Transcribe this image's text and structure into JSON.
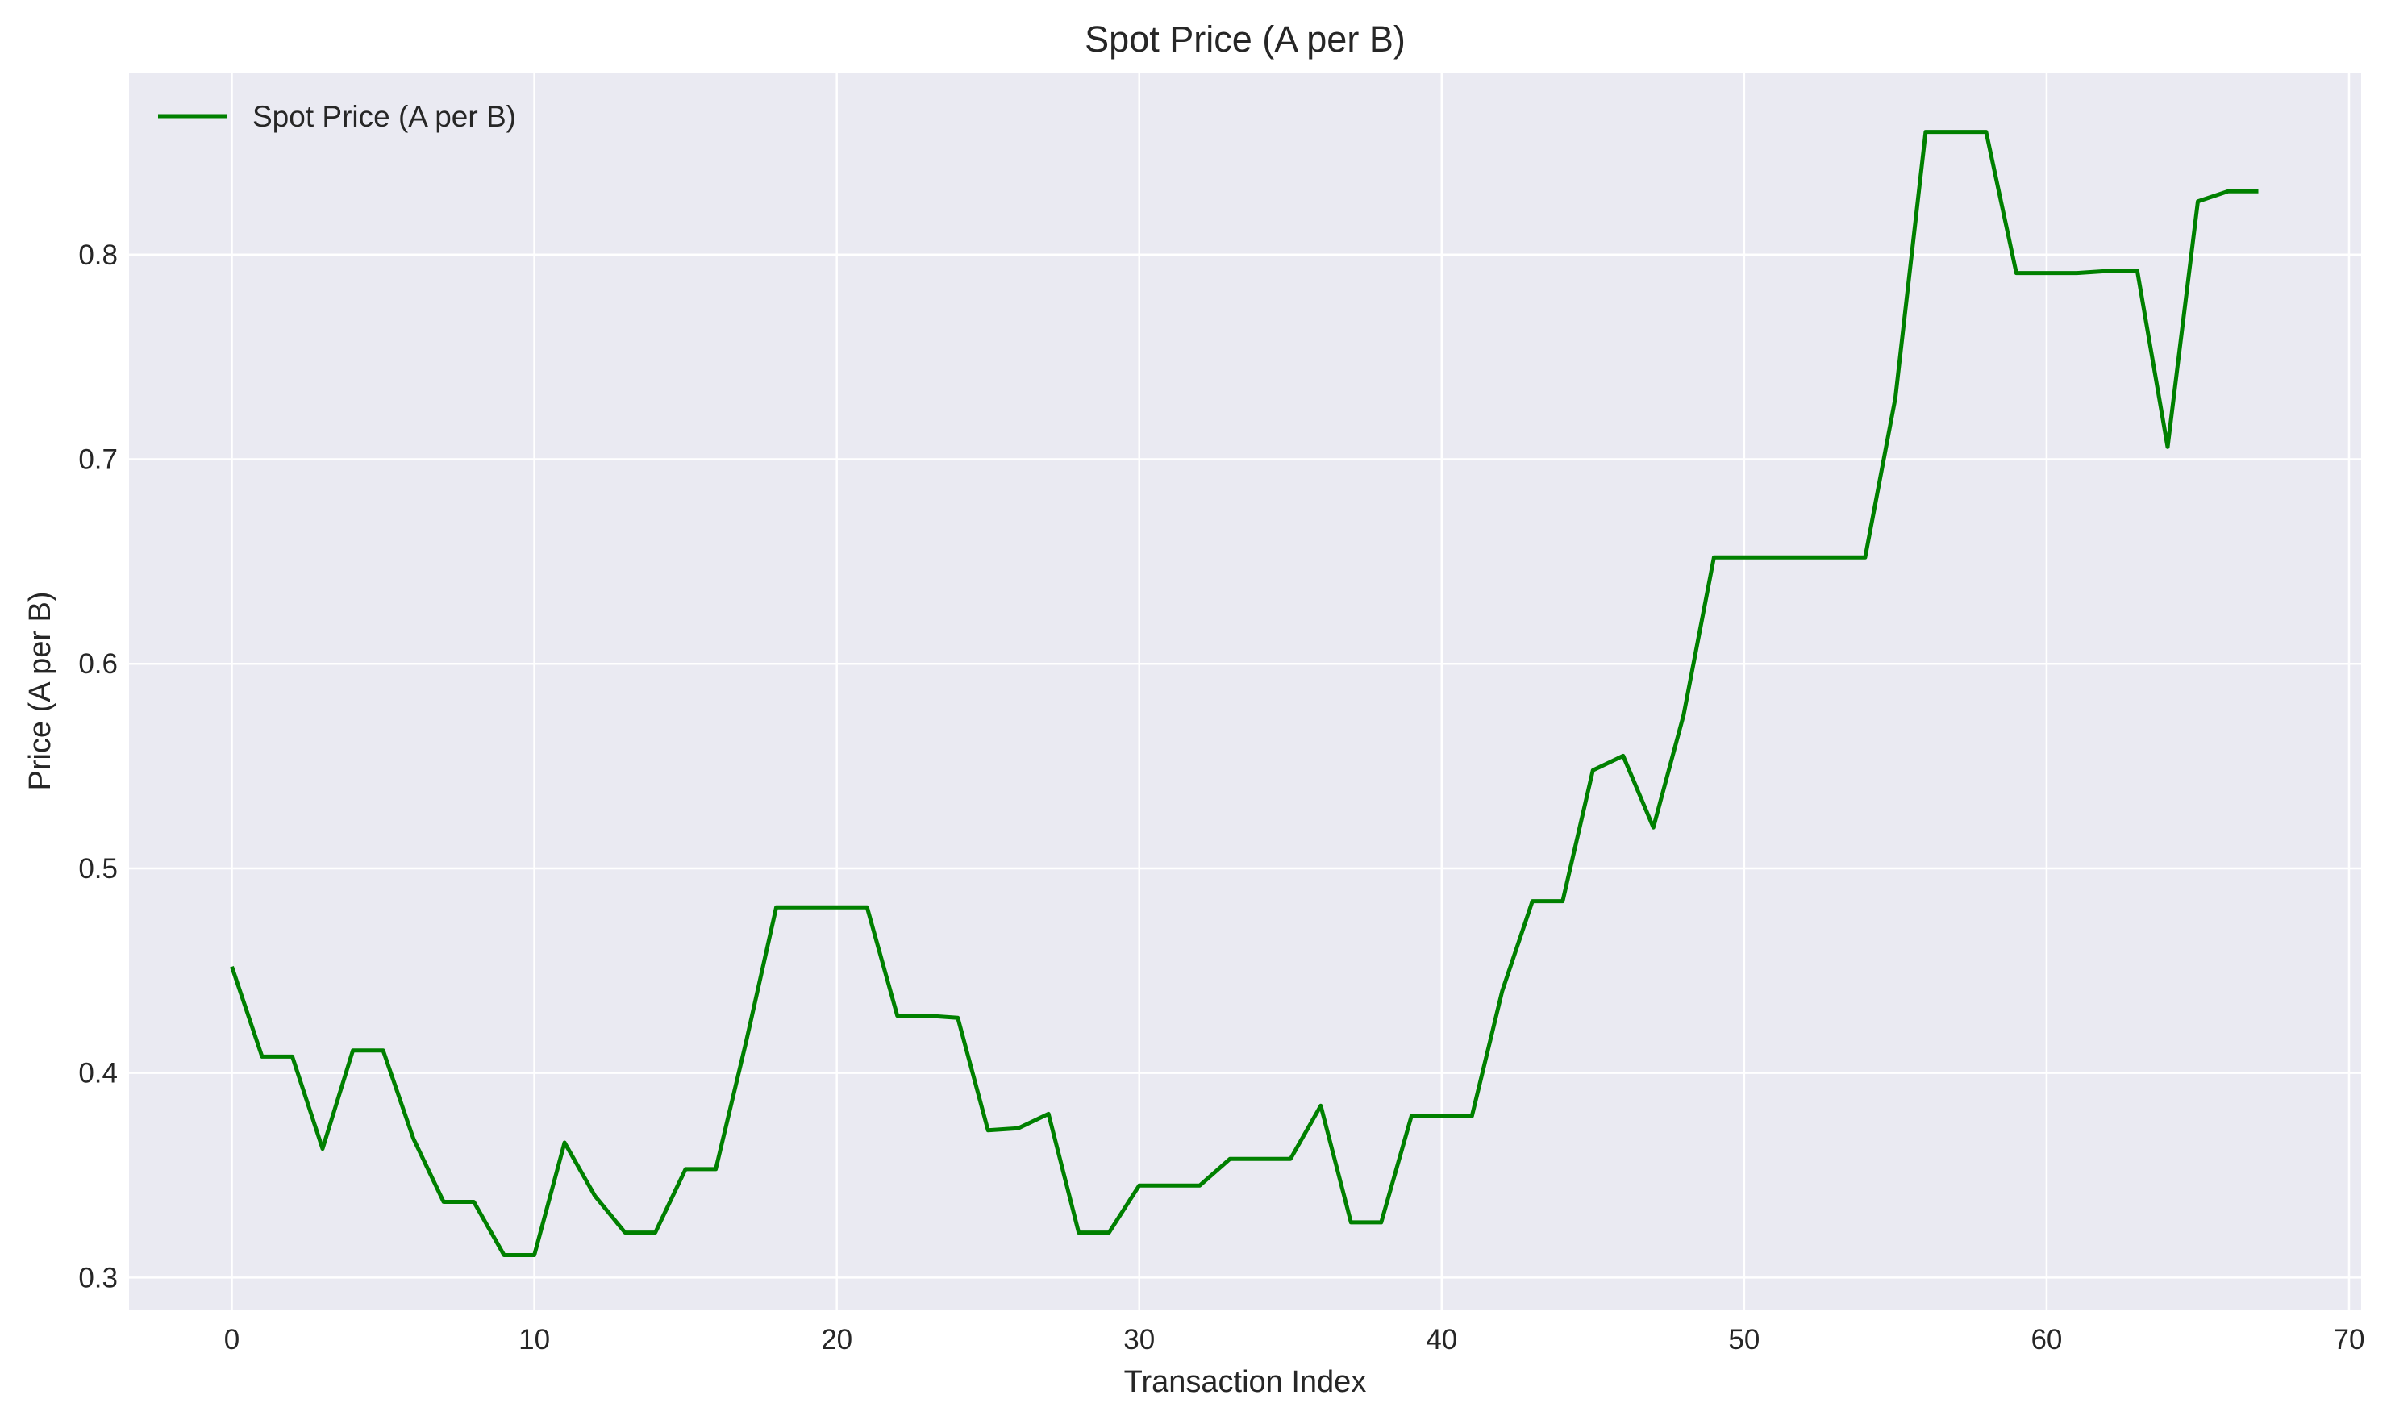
{
  "chart_data": {
    "type": "line",
    "title": "Spot Price (A per B)",
    "xlabel": "Transaction Index",
    "ylabel": "Price (A per B)",
    "xlim": [
      -3.4,
      70.4
    ],
    "ylim": [
      0.284,
      0.889
    ],
    "xticks": [
      0,
      10,
      20,
      30,
      40,
      50,
      60,
      70
    ],
    "yticks": [
      0.3,
      0.4,
      0.5,
      0.6,
      0.7,
      0.8
    ],
    "grid": true,
    "legend_position": "top-left",
    "background_color": "#eaeaf2",
    "grid_color": "#ffffff",
    "series": [
      {
        "name": "Spot Price (A per B)",
        "color": "#008000",
        "x": [
          0,
          1,
          2,
          3,
          4,
          5,
          6,
          7,
          8,
          9,
          10,
          11,
          12,
          13,
          14,
          15,
          16,
          17,
          18,
          19,
          20,
          21,
          22,
          23,
          24,
          25,
          26,
          27,
          28,
          29,
          30,
          31,
          32,
          33,
          34,
          35,
          36,
          37,
          38,
          39,
          40,
          41,
          42,
          43,
          44,
          45,
          46,
          47,
          48,
          49,
          50,
          51,
          52,
          53,
          54,
          55,
          56,
          57,
          58,
          59,
          60,
          61,
          62,
          63,
          64,
          65,
          66,
          67
        ],
        "y": [
          0.452,
          0.408,
          0.408,
          0.363,
          0.411,
          0.411,
          0.368,
          0.337,
          0.337,
          0.311,
          0.311,
          0.366,
          0.34,
          0.322,
          0.322,
          0.353,
          0.353,
          0.415,
          0.481,
          0.481,
          0.481,
          0.481,
          0.428,
          0.428,
          0.427,
          0.372,
          0.373,
          0.38,
          0.322,
          0.322,
          0.345,
          0.345,
          0.345,
          0.358,
          0.358,
          0.358,
          0.384,
          0.327,
          0.327,
          0.379,
          0.379,
          0.379,
          0.44,
          0.484,
          0.484,
          0.548,
          0.555,
          0.52,
          0.575,
          0.652,
          0.652,
          0.652,
          0.652,
          0.652,
          0.652,
          0.73,
          0.86,
          0.86,
          0.86,
          0.791,
          0.791,
          0.791,
          0.792,
          0.792,
          0.706,
          0.826,
          0.831,
          0.831
        ]
      }
    ]
  }
}
